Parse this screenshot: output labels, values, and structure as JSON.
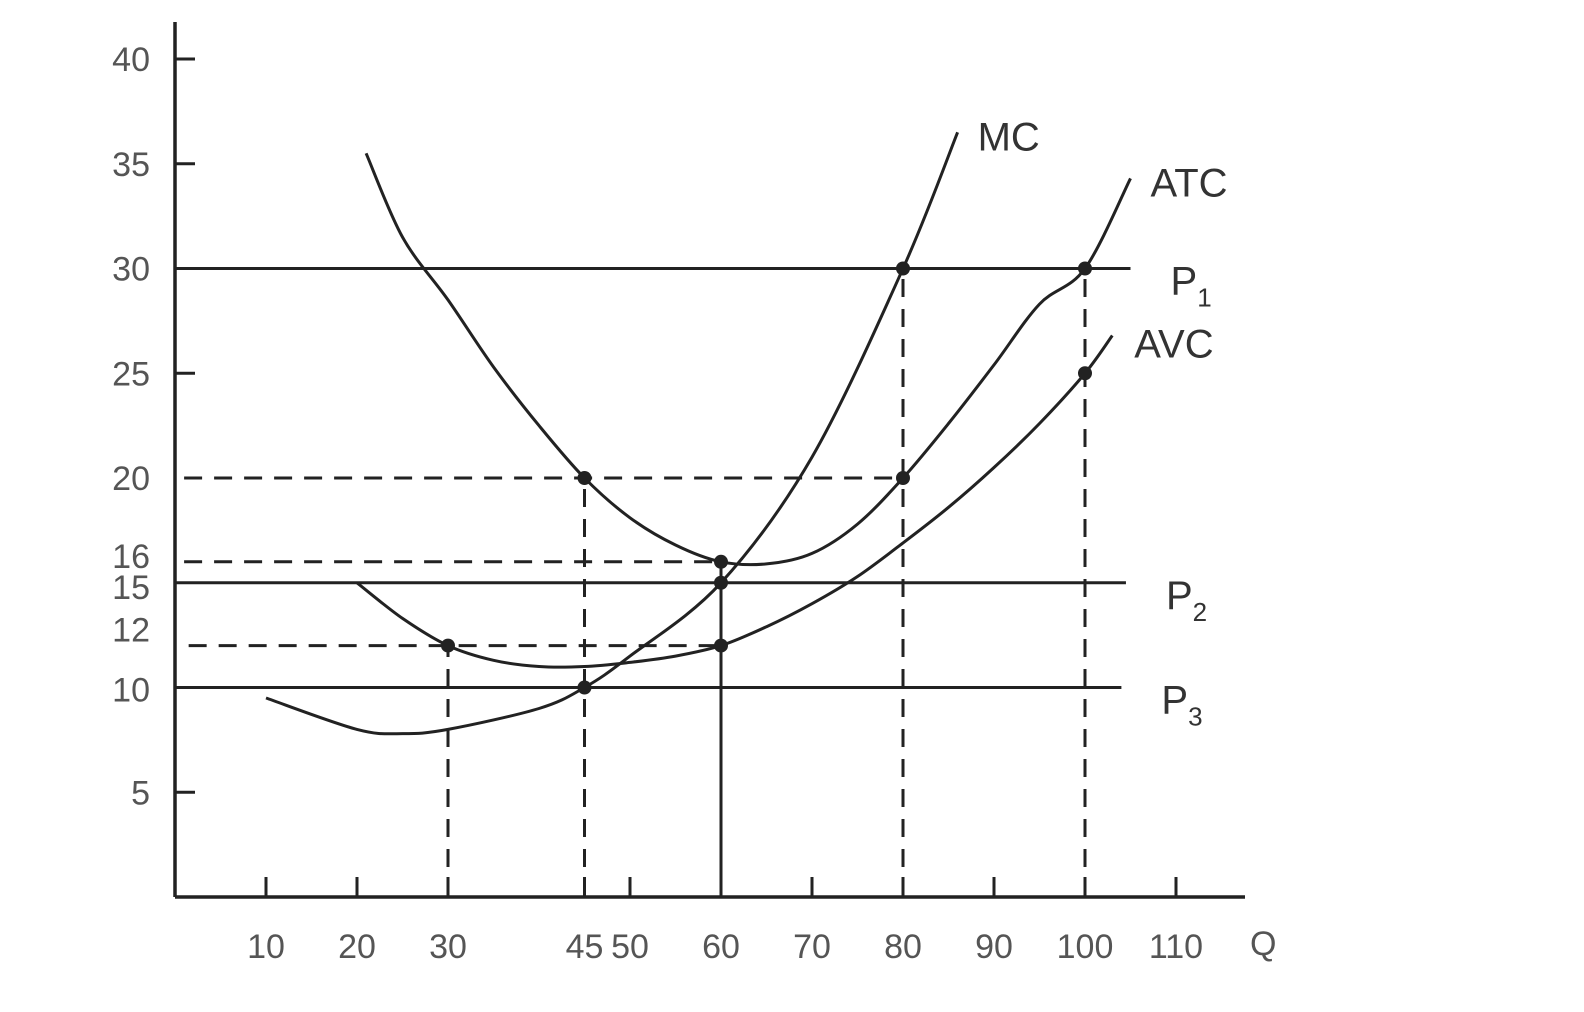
{
  "chart_data": {
    "type": "line",
    "title": "",
    "xlabel": "Q",
    "ylabel": "",
    "xlim": [
      0,
      117
    ],
    "ylim": [
      0,
      43
    ],
    "x_ticks": [
      10,
      20,
      30,
      45,
      50,
      60,
      70,
      80,
      90,
      100,
      110
    ],
    "y_ticks": [
      5,
      10,
      12,
      15,
      16,
      20,
      25,
      30,
      35,
      40
    ],
    "grid": false,
    "series": [
      {
        "name": "MC",
        "x": [
          10,
          20,
          25,
          30,
          40,
          45,
          50,
          60,
          70,
          80,
          86
        ],
        "y": [
          9.5,
          8,
          7.8,
          8,
          9,
          10,
          11.5,
          15,
          21,
          30,
          36.5
        ]
      },
      {
        "name": "ATC",
        "x": [
          21,
          25,
          30,
          35,
          40,
          45,
          50,
          55,
          60,
          65,
          70,
          75,
          80,
          85,
          90,
          95,
          100,
          105
        ],
        "y": [
          35.5,
          31.5,
          28.5,
          25.3,
          22.5,
          20,
          18.1,
          16.8,
          16,
          15.9,
          16.4,
          17.8,
          20,
          22.6,
          25.4,
          28.3,
          30,
          34.3
        ]
      },
      {
        "name": "AVC",
        "x": [
          20,
          25,
          30,
          35,
          40,
          45,
          50,
          55,
          60,
          65,
          70,
          75,
          80,
          85,
          90,
          95,
          100,
          103
        ],
        "y": [
          15,
          13.3,
          12,
          11.3,
          11,
          11,
          11.2,
          11.5,
          12,
          12.9,
          14,
          15.3,
          16.9,
          18.6,
          20.5,
          22.6,
          25,
          26.8
        ]
      }
    ],
    "price_lines": [
      {
        "name": "P1",
        "label_main": "P",
        "label_sub": "1",
        "y": 30,
        "x_end": 105
      },
      {
        "name": "P2",
        "label_main": "P",
        "label_sub": "2",
        "y": 15,
        "x_end": 104.5
      },
      {
        "name": "P3",
        "label_main": "P",
        "label_sub": "3",
        "y": 10,
        "x_end": 104
      }
    ],
    "marked_points": [
      {
        "x": 80,
        "y": 30
      },
      {
        "x": 100,
        "y": 30
      },
      {
        "x": 100,
        "y": 25
      },
      {
        "x": 45,
        "y": 20
      },
      {
        "x": 80,
        "y": 20
      },
      {
        "x": 60,
        "y": 16
      },
      {
        "x": 60,
        "y": 15
      },
      {
        "x": 30,
        "y": 12
      },
      {
        "x": 60,
        "y": 12
      },
      {
        "x": 45,
        "y": 10
      }
    ],
    "guide_lines": [
      {
        "orient": "h",
        "y": 20,
        "x0": 1,
        "x1": 80,
        "style": "dashed"
      },
      {
        "orient": "h",
        "y": 16,
        "x0": 1,
        "x1": 60,
        "style": "dashed"
      },
      {
        "orient": "h",
        "y": 12,
        "x0": 1.5,
        "x1": 60,
        "style": "dashed"
      },
      {
        "orient": "v",
        "x": 30,
        "y0": 0,
        "y1": 12,
        "style": "dashed"
      },
      {
        "orient": "v",
        "x": 45,
        "y0": 0,
        "y1": 20,
        "style": "dashed"
      },
      {
        "orient": "v",
        "x": 60,
        "y0": 0,
        "y1": 16,
        "style": "solid"
      },
      {
        "orient": "v",
        "x": 80,
        "y0": 0,
        "y1": 30,
        "style": "dashed"
      },
      {
        "orient": "v",
        "x": 100,
        "y0": 0,
        "y1": 30,
        "style": "dashed"
      }
    ]
  }
}
